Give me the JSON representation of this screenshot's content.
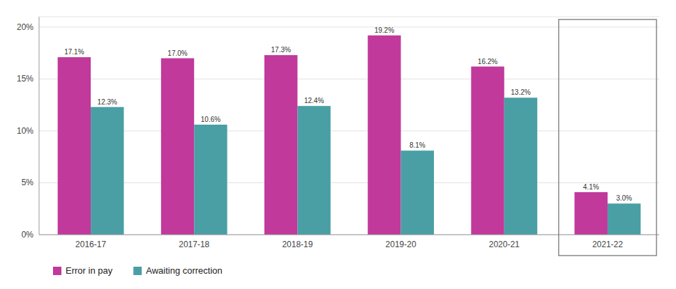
{
  "chart_data": {
    "type": "bar",
    "categories": [
      "2016-17",
      "2017-18",
      "2018-19",
      "2019-20",
      "2020-21",
      "2021-22"
    ],
    "series": [
      {
        "name": "Error in pay",
        "color": "#c0399b",
        "values": [
          17.1,
          17.0,
          17.3,
          19.2,
          16.2,
          4.1
        ],
        "value_labels": [
          "17.1%",
          "17.0%",
          "17.3%",
          "19.2%",
          "16.2%",
          "4.1%"
        ]
      },
      {
        "name": "Awaiting correction",
        "color": "#4a9fa5",
        "values": [
          12.3,
          10.6,
          12.4,
          8.1,
          13.2,
          3.0
        ],
        "value_labels": [
          "12.3%",
          "10.6%",
          "12.4%",
          "8.1%",
          "13.2%",
          "3.0%"
        ]
      }
    ],
    "ylim": [
      0,
      21
    ],
    "yticks": [
      {
        "value": 0,
        "label": "0%"
      },
      {
        "value": 5,
        "label": "5%"
      },
      {
        "value": 10,
        "label": "10%"
      },
      {
        "value": 15,
        "label": "15%"
      },
      {
        "value": 20,
        "label": "20%"
      }
    ],
    "grid": true,
    "data_labels": true,
    "legend": "lower left"
  }
}
